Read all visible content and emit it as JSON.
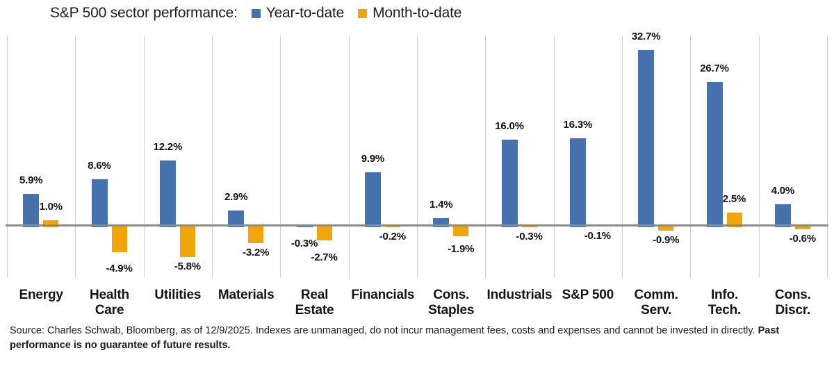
{
  "header": {
    "title": "S&P 500 sector performance:",
    "legend": [
      {
        "label": "Year-to-date",
        "color": "#4673ad"
      },
      {
        "label": "Month-to-date",
        "color": "#f0a60b"
      }
    ]
  },
  "chart_data": {
    "type": "bar",
    "title": "S&P 500 sector performance:",
    "categories": [
      {
        "label": "Energy",
        "lines": [
          "Energy"
        ],
        "slug": "energy"
      },
      {
        "label": "Health Care",
        "lines": [
          "Health",
          "Care"
        ],
        "slug": "health-care"
      },
      {
        "label": "Utilities",
        "lines": [
          "Utilities"
        ],
        "slug": "utilities"
      },
      {
        "label": "Materials",
        "lines": [
          "Materials"
        ],
        "slug": "materials"
      },
      {
        "label": "Real Estate",
        "lines": [
          "Real",
          "Estate"
        ],
        "slug": "real-estate"
      },
      {
        "label": "Financials",
        "lines": [
          "Financials"
        ],
        "slug": "financials"
      },
      {
        "label": "Cons. Staples",
        "lines": [
          "Cons.",
          "Staples"
        ],
        "slug": "cons-staples"
      },
      {
        "label": "Industrials",
        "lines": [
          "Industrials"
        ],
        "slug": "industrials"
      },
      {
        "label": "S&P 500",
        "lines": [
          "S&P 500"
        ],
        "slug": "sp-500"
      },
      {
        "label": "Comm. Serv.",
        "lines": [
          "Comm.",
          "Serv."
        ],
        "slug": "comm-serv"
      },
      {
        "label": "Info. Tech.",
        "lines": [
          "Info.",
          "Tech."
        ],
        "slug": "info-tech"
      },
      {
        "label": "Cons. Discr.",
        "lines": [
          "Cons.",
          "Discr."
        ],
        "slug": "cons-discr"
      }
    ],
    "series": [
      {
        "name": "Year-to-date",
        "color": "#4673ad",
        "values": [
          5.9,
          8.6,
          12.2,
          2.9,
          -0.3,
          9.9,
          1.4,
          16.0,
          16.3,
          32.7,
          26.7,
          4.0
        ]
      },
      {
        "name": "Month-to-date",
        "color": "#f0a60b",
        "values": [
          1.0,
          -4.9,
          -5.8,
          -3.2,
          -2.7,
          -0.2,
          -1.9,
          -0.3,
          -0.1,
          -0.9,
          2.5,
          -0.6
        ]
      }
    ],
    "value_label_format": "0.0%",
    "ylabel": "",
    "xlabel": "",
    "ylim": [
      -9.7,
      35.4
    ],
    "grid": "vertical-category-separators-only",
    "legend_position": "top"
  },
  "footer": {
    "text_regular": "Source: Charles Schwab, Bloomberg, as of 12/9/2025.  Indexes are unmanaged, do not incur management fees, costs and expenses and cannot be invested in directly. ",
    "text_bold": "Past performance is no guarantee of future results."
  }
}
